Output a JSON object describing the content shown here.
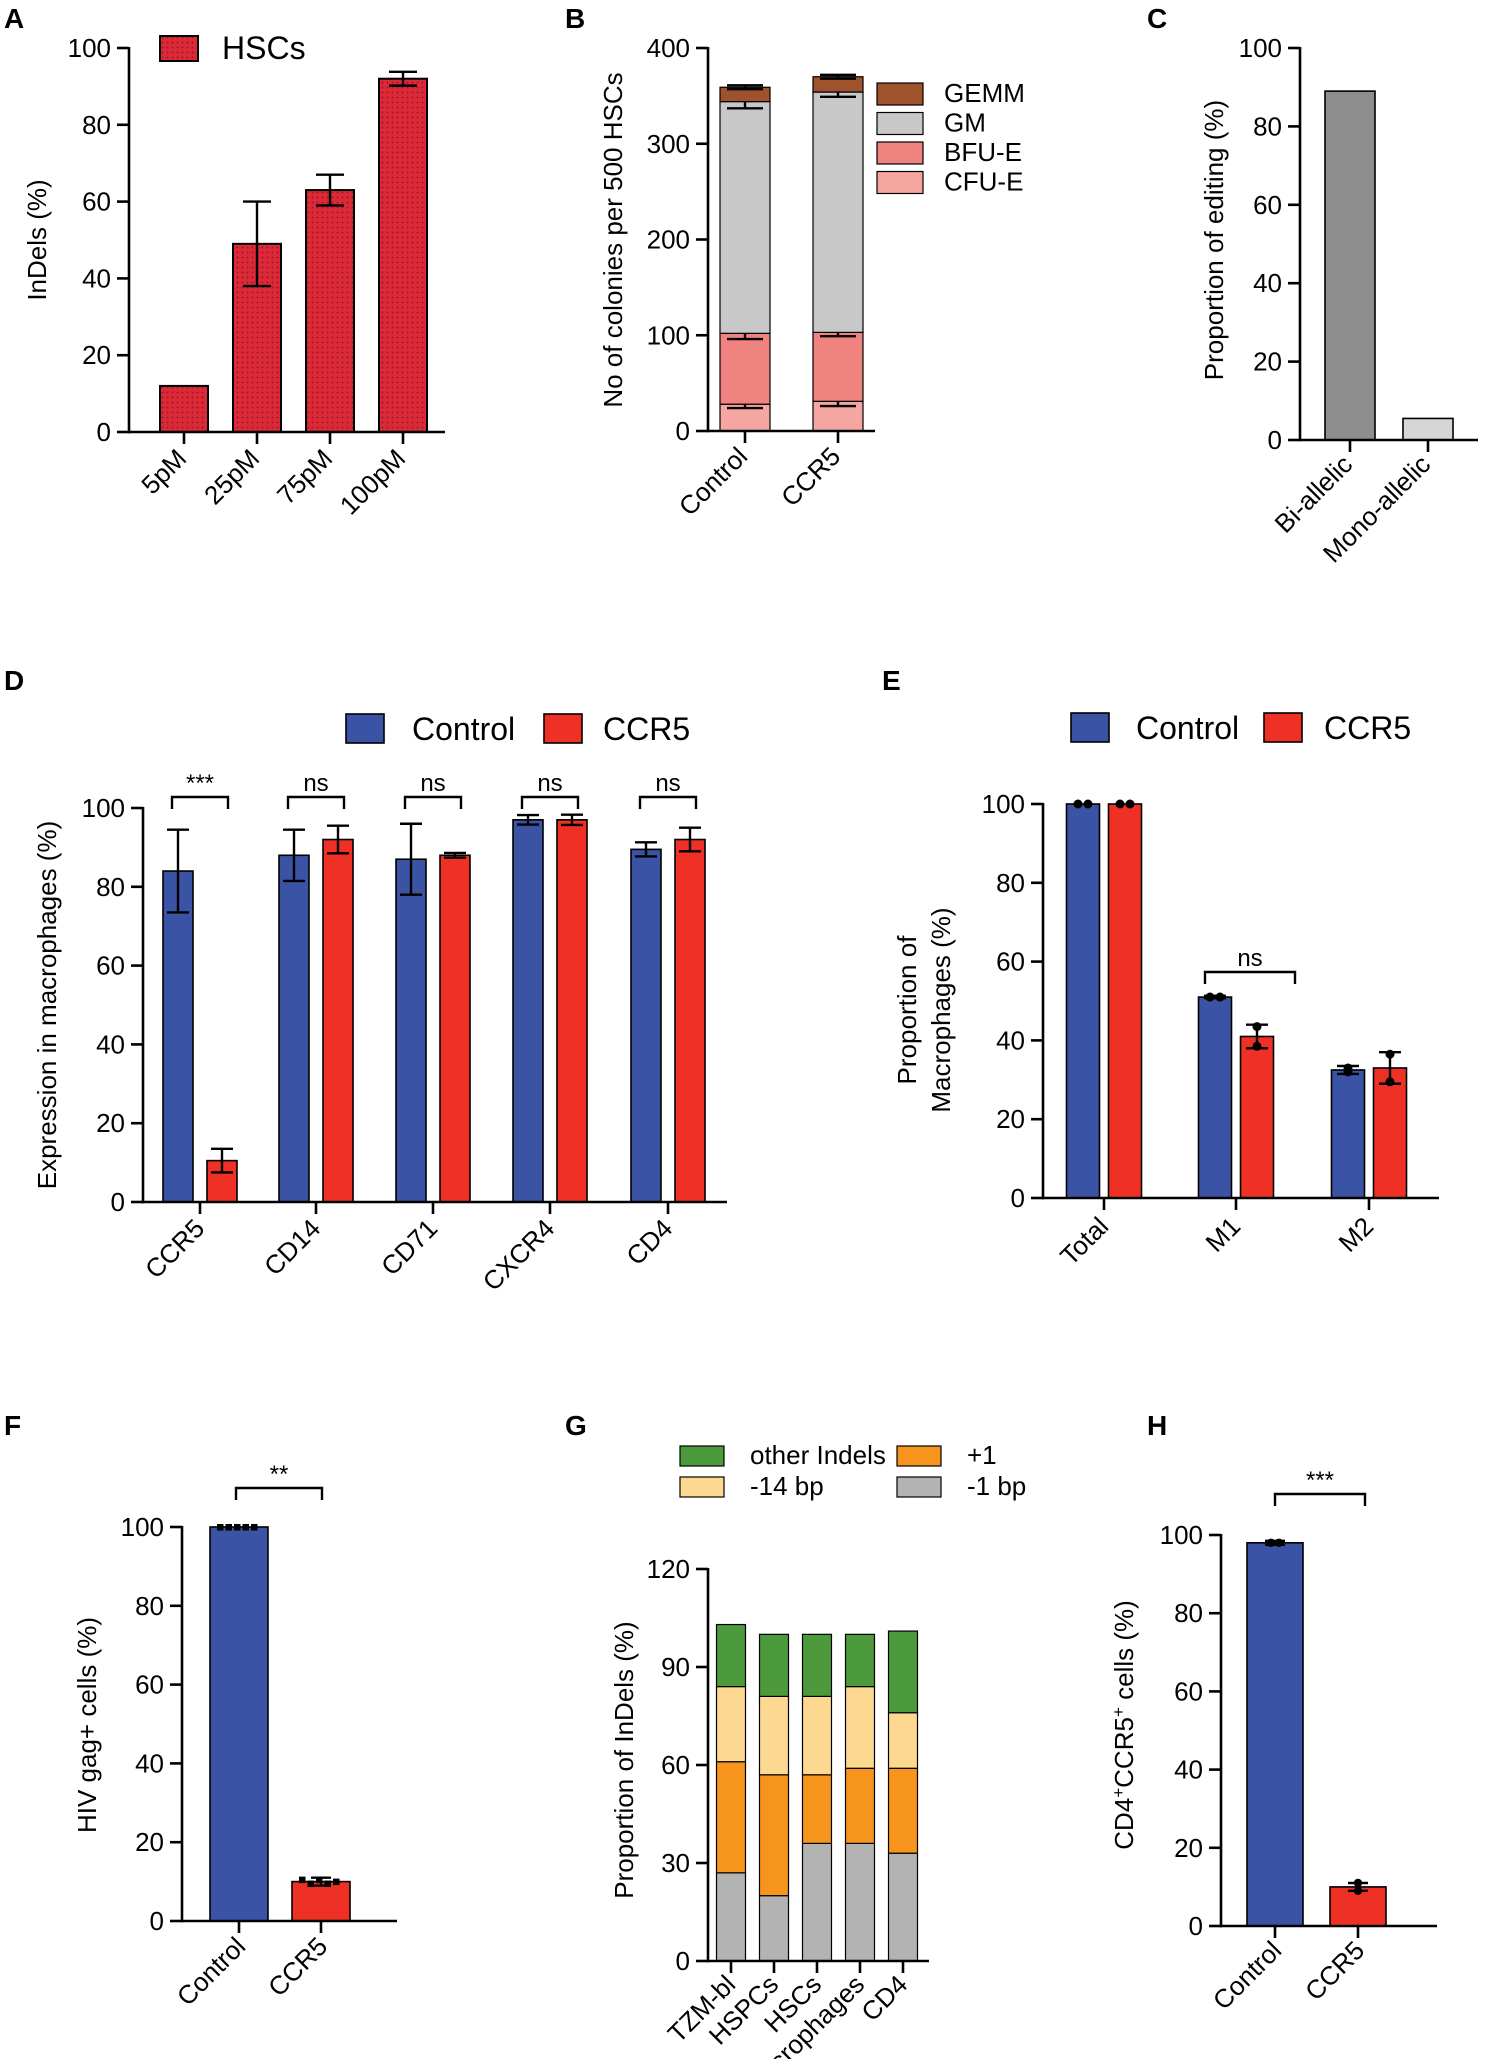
{
  "colors": {
    "hsc": "#DC2837",
    "control": "#3A53A4",
    "ccr5": "#EE3124",
    "cfue": "#F6A6A1",
    "bfue": "#F08380",
    "gm": "#C8C8C8",
    "gemm": "#A0522D",
    "biallelic": "#8E8E8E",
    "monoallelic": "#D6D6D6",
    "other_indels": "#4C9A3C",
    "plus1": "#F7941D",
    "minus14": "#FDD891",
    "minus1": "#B3B3B3",
    "point": "#000000"
  },
  "chart_data": [
    {
      "id": "A",
      "panel_label": "A",
      "type": "bar",
      "categories": [
        "5pM",
        "25pM",
        "75pM",
        "100pM"
      ],
      "values": [
        12,
        49,
        63,
        92
      ],
      "errors": [
        0,
        11,
        4,
        1.8
      ],
      "series_name": "HSCs",
      "ylabel": "InDels (%)",
      "ylim": [
        0,
        100
      ],
      "yticks": [
        "0",
        "20",
        "40",
        "60",
        "80",
        "100"
      ],
      "legend_position": "top-left"
    },
    {
      "id": "B",
      "panel_label": "B",
      "type": "bar",
      "stacked": true,
      "categories": [
        "Control",
        "CCR5"
      ],
      "series": [
        {
          "name": "CFU-E",
          "values": [
            28,
            31
          ],
          "errors": [
            4,
            5
          ]
        },
        {
          "name": "BFU-E",
          "values": [
            74,
            72
          ],
          "errors": [
            6,
            4
          ]
        },
        {
          "name": "GM",
          "values": [
            242,
            251
          ],
          "errors": [
            7,
            5
          ]
        },
        {
          "name": "GEMM",
          "values": [
            15,
            16
          ],
          "errors": [
            2,
            2
          ]
        }
      ],
      "legend_order": [
        "GEMM",
        "GM",
        "BFU-E",
        "CFU-E"
      ],
      "ylabel": "No of colonies per 500 HSCs",
      "ylim": [
        0,
        400
      ],
      "yticks": [
        "0",
        "100",
        "200",
        "300",
        "400"
      ],
      "legend_position": "right"
    },
    {
      "id": "C",
      "panel_label": "C",
      "type": "bar",
      "categories": [
        "Bi-allelic",
        "Mono-allelic"
      ],
      "values": [
        89,
        5.5
      ],
      "ylabel": "Proportion of editing (%)",
      "ylim": [
        0,
        100
      ],
      "yticks": [
        "0",
        "20",
        "40",
        "60",
        "80",
        "100"
      ]
    },
    {
      "id": "D",
      "panel_label": "D",
      "type": "bar",
      "categories": [
        "CCR5",
        "CD14",
        "CD71",
        "CXCR4",
        "CD4"
      ],
      "series": [
        {
          "name": "Control",
          "values": [
            84,
            88,
            87,
            97,
            89.5
          ],
          "errors": [
            10.5,
            6.5,
            9,
            1.2,
            1.8
          ]
        },
        {
          "name": "CCR5",
          "values": [
            10.5,
            92,
            88,
            97,
            92
          ],
          "errors": [
            3,
            3.5,
            0.6,
            1.3,
            3
          ]
        }
      ],
      "significance": [
        "***",
        "ns",
        "ns",
        "ns",
        "ns"
      ],
      "ylabel": "Expression in macrophages (%)",
      "ylim": [
        0,
        100
      ],
      "yticks": [
        "0",
        "20",
        "40",
        "60",
        "80",
        "100"
      ],
      "legend_position": "top-right"
    },
    {
      "id": "E",
      "panel_label": "E",
      "type": "bar",
      "categories": [
        "Total",
        "M1",
        "M2"
      ],
      "series": [
        {
          "name": "Control",
          "values": [
            100,
            51,
            32.5
          ],
          "errors": [
            0,
            0.3,
            1
          ],
          "points": [
            [
              100,
              100
            ],
            [
              51,
              51
            ],
            [
              32,
              33
            ]
          ]
        },
        {
          "name": "CCR5",
          "values": [
            100,
            41,
            33
          ],
          "errors": [
            0,
            3,
            4
          ],
          "points": [
            [
              100,
              100
            ],
            [
              43.5,
              38.5
            ],
            [
              36.5,
              29.5
            ]
          ]
        }
      ],
      "significance": [
        {
          "group": "M1",
          "label": "ns"
        }
      ],
      "ylabel_line1": "Proportion of",
      "ylabel_line2": "Macrophages (%)",
      "ylim": [
        0,
        100
      ],
      "yticks": [
        "0",
        "20",
        "40",
        "60",
        "80",
        "100"
      ],
      "legend_position": "top-right"
    },
    {
      "id": "F",
      "panel_label": "F",
      "type": "bar",
      "categories": [
        "Control",
        "CCR5"
      ],
      "values": [
        100,
        10
      ],
      "errors": [
        0,
        1
      ],
      "points": [
        [
          100,
          100,
          100,
          100,
          100
        ],
        [
          10.5,
          9.5,
          10.5,
          9.5,
          10
        ]
      ],
      "significance": "**",
      "ylabel": "HIV gag+ cells (%)",
      "ylim": [
        0,
        100
      ],
      "yticks": [
        "0",
        "20",
        "40",
        "60",
        "80",
        "100"
      ]
    },
    {
      "id": "G",
      "panel_label": "G",
      "type": "bar",
      "stacked": true,
      "categories": [
        "TZM-bl",
        "HSPCs",
        "HSCs",
        "Macrophages",
        "CD4"
      ],
      "series": [
        {
          "name": "-1 bp",
          "values": [
            27,
            20,
            36,
            36,
            33
          ]
        },
        {
          "name": "+1",
          "values": [
            34,
            37,
            21,
            23,
            26
          ]
        },
        {
          "name": "-14 bp",
          "values": [
            23,
            24,
            24,
            25,
            17
          ]
        },
        {
          "name": "other Indels",
          "values": [
            19,
            19,
            19,
            16,
            25
          ]
        }
      ],
      "legend_order": [
        "other Indels",
        "+1",
        "-14 bp",
        "-1 bp"
      ],
      "ylabel": "Proportion of InDels (%)",
      "ylim": [
        0,
        120
      ],
      "yticks": [
        "0",
        "30",
        "60",
        "90",
        "120"
      ],
      "legend_position": "top"
    },
    {
      "id": "H",
      "panel_label": "H",
      "type": "bar",
      "categories": [
        "Control",
        "CCR5"
      ],
      "values": [
        98,
        10
      ],
      "errors": [
        0.5,
        1
      ],
      "points": [
        [
          98,
          98
        ],
        [
          11,
          9
        ]
      ],
      "significance": "***",
      "ylabel_base": "CD4",
      "ylabel_sup1": "+",
      "ylabel_mid": "CCR5",
      "ylabel_sup2": "+",
      "ylabel_end": " cells (%)",
      "ylim": [
        0,
        100
      ],
      "yticks": [
        "0",
        "20",
        "40",
        "60",
        "80",
        "100"
      ]
    }
  ]
}
